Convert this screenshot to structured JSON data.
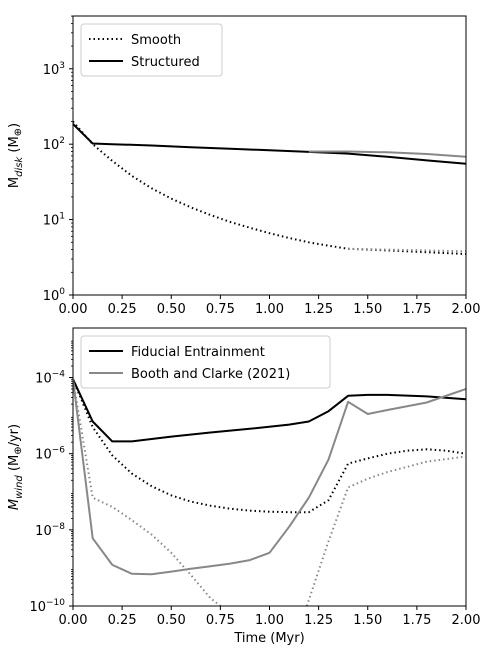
{
  "chart_data": [
    {
      "type": "line",
      "title": "",
      "xlabel": "",
      "ylabel_main": "M",
      "ylabel_sub": "disk",
      "ylabel_unit": "(M",
      "ylabel_unit_sym": "⊕",
      "ylabel_unit_close": ")",
      "xscale": "linear",
      "yscale": "log",
      "xlim": [
        0.0,
        2.0
      ],
      "ylim_exp": [
        0,
        3.7
      ],
      "xticks": [
        0.0,
        0.25,
        0.5,
        0.75,
        1.0,
        1.25,
        1.5,
        1.75,
        2.0
      ],
      "xtick_labels": [
        "0.00",
        "0.25",
        "0.50",
        "0.75",
        "1.00",
        "1.25",
        "1.50",
        "1.75",
        "2.00"
      ],
      "yticks_exp": [
        0,
        1,
        2,
        3
      ],
      "ytick_bases": [
        "10",
        "10",
        "10",
        "10"
      ],
      "ytick_exps": [
        "0",
        "1",
        "2",
        "3"
      ],
      "legend": {
        "position": "top-left",
        "entries": [
          "Smooth",
          "Structured"
        ]
      },
      "series": [
        {
          "name": "Smooth",
          "color": "#000000",
          "style": "dotted",
          "x": [
            0.0,
            0.1,
            0.2,
            0.3,
            0.4,
            0.5,
            0.6,
            0.7,
            0.8,
            0.9,
            1.0,
            1.1,
            1.2,
            1.3,
            1.4,
            1.5,
            1.6,
            1.7,
            1.8,
            1.9,
            2.0
          ],
          "y": [
            200,
            100,
            60,
            38,
            26,
            19,
            14.5,
            11.5,
            9.3,
            7.8,
            6.6,
            5.7,
            5.0,
            4.5,
            4.1,
            4.0,
            3.9,
            3.8,
            3.7,
            3.6,
            3.5
          ]
        },
        {
          "name": "Smooth",
          "color": "#888888",
          "style": "dotted",
          "x": [
            1.4,
            1.5,
            1.6,
            1.7,
            1.8,
            1.9,
            2.0
          ],
          "y": [
            4.1,
            4.05,
            4.0,
            3.95,
            3.9,
            3.85,
            3.8
          ]
        },
        {
          "name": "Structured",
          "color": "#000000",
          "style": "solid",
          "x": [
            0.0,
            0.1,
            0.2,
            0.4,
            0.6,
            0.8,
            1.0,
            1.2,
            1.4,
            1.6,
            1.8,
            2.0
          ],
          "y": [
            185,
            102,
            100,
            96,
            91,
            87,
            83,
            79,
            75,
            68,
            61,
            55
          ]
        },
        {
          "name": "Structured",
          "color": "#888888",
          "style": "solid",
          "x": [
            1.2,
            1.4,
            1.6,
            1.8,
            2.0
          ],
          "y": [
            80,
            80,
            78,
            74,
            68
          ]
        }
      ]
    },
    {
      "type": "line",
      "title": "",
      "xlabel": "Time (Myr)",
      "ylabel_main": "M",
      "ylabel_sub": "wind",
      "ylabel_unit": "(M",
      "ylabel_unit_sym": "⊕",
      "ylabel_unit_close": "/yr)",
      "xscale": "linear",
      "yscale": "log",
      "xlim": [
        0.0,
        2.0
      ],
      "ylim_exp": [
        -10,
        -2.7
      ],
      "xticks": [
        0.0,
        0.25,
        0.5,
        0.75,
        1.0,
        1.25,
        1.5,
        1.75,
        2.0
      ],
      "xtick_labels": [
        "0.00",
        "0.25",
        "0.50",
        "0.75",
        "1.00",
        "1.25",
        "1.50",
        "1.75",
        "2.00"
      ],
      "yticks_exp": [
        -10,
        -8,
        -6,
        -4
      ],
      "ytick_bases": [
        "10",
        "10",
        "10",
        "10"
      ],
      "ytick_exps": [
        "−10",
        "−8",
        "−6",
        "−4"
      ],
      "legend": {
        "position": "top-left",
        "entries": [
          "Fiducial Entrainment",
          "Booth and Clarke (2021)"
        ]
      },
      "series": [
        {
          "name": "Fiducial Entrainment",
          "color": "#000000",
          "style": "solid",
          "x": [
            0.0,
            0.1,
            0.2,
            0.3,
            0.5,
            0.7,
            0.9,
            1.1,
            1.2,
            1.3,
            1.4,
            1.5,
            1.6,
            1.8,
            2.0
          ],
          "y": [
            9e-05,
            7e-06,
            2.1e-06,
            2.1e-06,
            2.8e-06,
            3.6e-06,
            4.5e-06,
            5.8e-06,
            7e-06,
            1.3e-05,
            3.3e-05,
            3.5e-05,
            3.5e-05,
            3.2e-05,
            2.7e-05
          ]
        },
        {
          "name": "",
          "color": "#000000",
          "style": "dotted",
          "x": [
            0.0,
            0.1,
            0.2,
            0.3,
            0.4,
            0.5,
            0.6,
            0.7,
            0.8,
            0.9,
            1.0,
            1.1,
            1.2,
            1.3,
            1.4,
            1.5,
            1.6,
            1.7,
            1.8,
            1.9,
            2.0
          ],
          "y": [
            9e-05,
            5e-06,
            9e-07,
            3e-07,
            1.4e-07,
            8e-08,
            5.5e-08,
            4.3e-08,
            3.6e-08,
            3.2e-08,
            3e-08,
            2.9e-08,
            2.9e-08,
            6e-08,
            5.5e-07,
            7.5e-07,
            1e-06,
            1.2e-06,
            1.3e-06,
            1.2e-06,
            1e-06
          ]
        },
        {
          "name": "Booth and Clarke (2021)",
          "color": "#888888",
          "style": "solid",
          "x": [
            0.0,
            0.1,
            0.2,
            0.3,
            0.4,
            0.5,
            0.6,
            0.7,
            0.8,
            0.9,
            1.0,
            1.1,
            1.2,
            1.3,
            1.4,
            1.5,
            1.6,
            1.8,
            2.0
          ],
          "y": [
            9e-05,
            6e-09,
            1.2e-09,
            7e-10,
            6.8e-10,
            8e-10,
            9.5e-10,
            1.1e-09,
            1.3e-09,
            1.6e-09,
            2.5e-09,
            1.2e-08,
            7e-08,
            7e-07,
            2.3e-05,
            1.1e-05,
            1.4e-05,
            2.2e-05,
            5e-05
          ]
        },
        {
          "name": "",
          "color": "#888888",
          "style": "dotted",
          "x": [
            0.0,
            0.1,
            0.2,
            0.3,
            0.4,
            0.5,
            0.6,
            0.7,
            0.75
          ],
          "y": [
            9e-05,
            7e-08,
            4e-08,
            1.8e-08,
            7.5e-09,
            2.5e-09,
            6.5e-10,
            1.6e-10,
            1e-10
          ]
        },
        {
          "name": "",
          "color": "#888888",
          "style": "dotted",
          "x": [
            1.19,
            1.3,
            1.4,
            1.5,
            1.6,
            1.7,
            1.8,
            1.9,
            2.0
          ],
          "y": [
            1e-10,
            5e-09,
            1.3e-07,
            2.2e-07,
            3.3e-07,
            4.5e-07,
            6.2e-07,
            7.2e-07,
            8.5e-07
          ]
        }
      ]
    }
  ]
}
